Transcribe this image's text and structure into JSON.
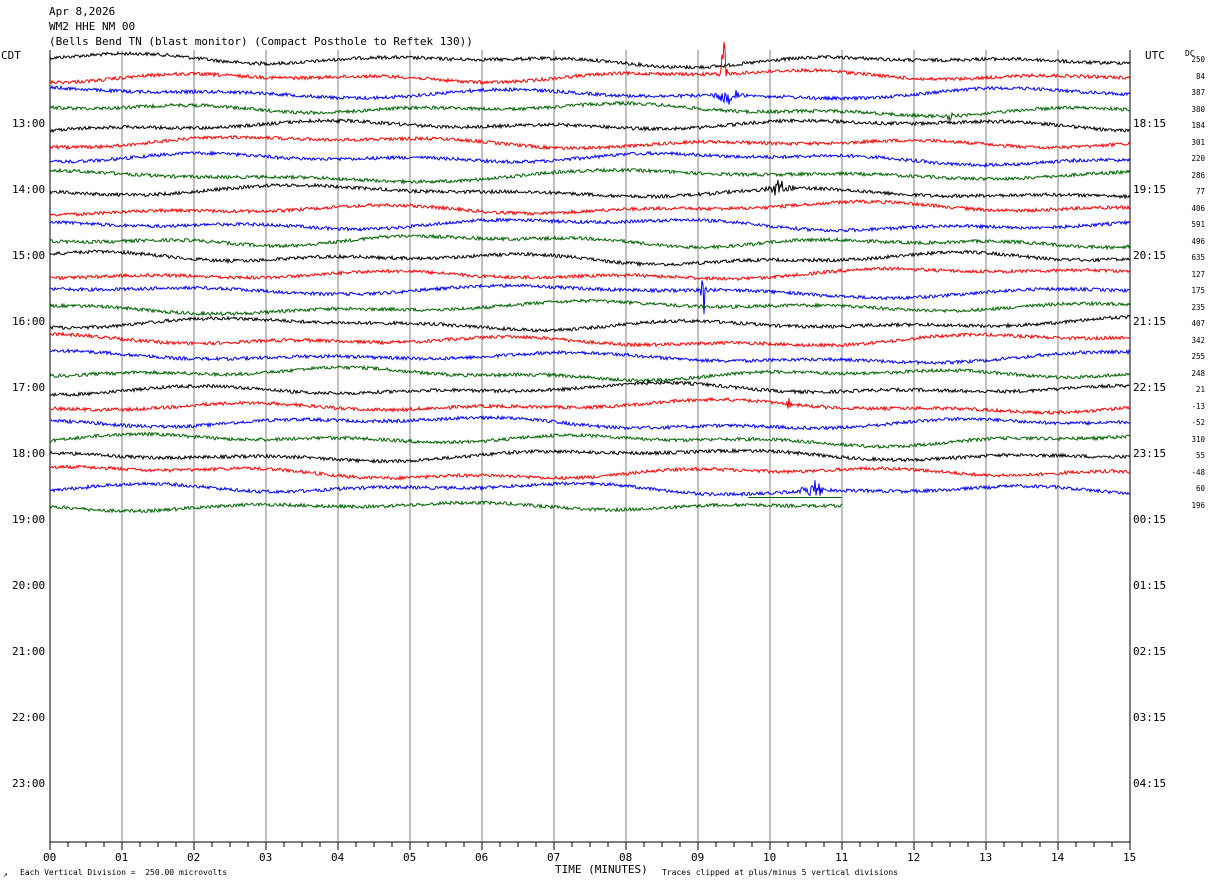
{
  "header": {
    "date": "Apr 8,2026",
    "station": "WM2 HHE NM 00",
    "site": "(Bells Bend TN (blast monitor) (Compact Posthole to Reftek 130))"
  },
  "left_tz": "CDT",
  "right_tz": "UTC",
  "dc_label": "DC",
  "footer": {
    "scale_note": "Each Vertical Division =  250.00 microvolts",
    "axis_title": "TIME (MINUTES)",
    "clip_note": "Traces clipped at plus/minus 5 vertical divisions"
  },
  "colors": {
    "trace_cycle": [
      "#000000",
      "#ff0000",
      "#0000ff",
      "#006400"
    ],
    "grid": "#808080",
    "axis": "#000000"
  },
  "chart_data": {
    "type": "line",
    "title": "WM2 HHE NM 00",
    "xlabel": "TIME (MINUTES)",
    "xlim": [
      0,
      15
    ],
    "x_ticks": [
      "00",
      "01",
      "02",
      "03",
      "04",
      "05",
      "06",
      "07",
      "08",
      "09",
      "10",
      "11",
      "12",
      "13",
      "14",
      "15"
    ],
    "left_hour_labels": [
      "13:00",
      "14:00",
      "15:00",
      "16:00",
      "17:00",
      "18:00",
      "19:00",
      "20:00",
      "21:00",
      "22:00",
      "23:00"
    ],
    "right_hour_labels": [
      "18:15",
      "19:15",
      "20:15",
      "21:15",
      "22:15",
      "23:15",
      "00:15",
      "01:15",
      "02:15",
      "03:15",
      "04:15"
    ],
    "rows_per_hour": 4,
    "minutes_per_row": 15,
    "first_row_start_cdt": "12:15",
    "dc_offsets": [
      250,
      84,
      387,
      380,
      184,
      301,
      220,
      286,
      77,
      406,
      591,
      496,
      635,
      127,
      175,
      235,
      407,
      342,
      255,
      248,
      21,
      -13,
      -52,
      310,
      55,
      -48,
      60,
      196
    ],
    "events": [
      {
        "row": 1,
        "minute": 9.35,
        "description": "large spike"
      },
      {
        "row": 2,
        "minute": 9.4,
        "description": "burst"
      },
      {
        "row": 3,
        "minute": 12.5,
        "description": "small spike"
      },
      {
        "row": 8,
        "minute": 10.1,
        "description": "burst"
      },
      {
        "row": 14,
        "minute": 9.08,
        "description": "large spike"
      },
      {
        "row": 21,
        "minute": 10.25,
        "description": "small spike"
      },
      {
        "row": 26,
        "minute": 10.6,
        "description": "burst"
      }
    ],
    "last_data_minute_row_27": 11.0,
    "scale_microvolts_per_division": 250.0,
    "clip_divisions": 5
  }
}
